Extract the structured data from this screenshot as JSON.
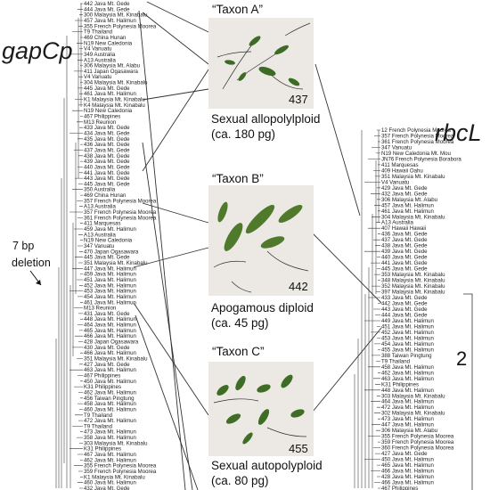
{
  "titles": {
    "left": "gapCp",
    "right": "rbcL"
  },
  "taxa": [
    {
      "name": "“Taxon A”",
      "voucher": "437",
      "caption_line1": "Sexual allopolylploid",
      "caption_line2": "(ca. 180 pg)"
    },
    {
      "name": "“Taxon B”",
      "voucher": "442",
      "caption_line1": "Apogamous diploid",
      "caption_line2": "(ca. 45 pg)"
    },
    {
      "name": "“Taxon C”",
      "voucher": "455",
      "caption_line1": "Sexual autopolyploid",
      "caption_line2": "(ca. 80 pg)"
    }
  ],
  "deletion_note": {
    "line1": "7 bp",
    "line2": "deletion"
  },
  "right_number": "2",
  "left_leaves": [
    "442 Java Mt. Gede",
    "444 Java Mt. Gede",
    "300 Malaysia Mt. Kinabalu",
    "457 Java Mt. Halimun",
    "355 French Polynesia Moorea",
    "T9 Thailand",
    "469 China Hunan",
    "N19 New Caledonia",
    "V4 Vanuatu",
    "349 Australia",
    "A13 Australia",
    "306 Malaysia Mt. Alabu",
    "411 Japan Ogasawara",
    "V4 Vanuatu",
    "304 Malaysia Mt. Kinabalu",
    "445 Java Mt. Gede",
    "461 Java Mt. Halimun",
    "K1 Malaysia Mt. Kinabalu",
    "K4 Malaysia Mt. Kinabalu",
    "N19 New Caledonia",
    "467 Philippines",
    "M13 Reunion",
    "433 Java Mt. Gede",
    "434 Java Mt. Gede",
    "435 Java Mt. Gede",
    "436 Java Mt. Gede",
    "437 Java Mt. Gede",
    "438 Java Mt. Gede",
    "439 Java Mt. Gede",
    "440 Java Mt. Gede",
    "441 Java Mt. Gede",
    "443 Java Mt. Gede",
    "445 Java Mt. Gede",
    "350 Australia",
    "469 China Hunan",
    "357 French Polynesia Moorea",
    "A13 Australia",
    "357 French Polynesia Moorea",
    "361 French Polynesia Moorea",
    "411 Marquesas",
    "459 Java Mt. Halimun",
    "A13 Australia",
    "N19 New Caledonia",
    "347 Vanuatu",
    "470 Japan Ogasawara",
    "445 Java Mt. Gede",
    "351 Malaysia Mt. Kinabalu",
    "447 Java Mt. Halimun",
    "459 Java Mt. Halimun",
    "451 Java Mt. Halimun",
    "452 Java Mt. Halimun",
    "453 Java Mt. Halimun",
    "454 Java Mt. Halimun",
    "461 Java Mt. Halimun",
    "M13 Reunion",
    "431 Java Mt. Gede",
    "448 Java Mt. Halimun",
    "464 Java Mt. Halimun",
    "465 Java Mt. Halimun",
    "466 Java Mt. Halimun",
    "428 Japan Ogasawara",
    "430 Java Mt. Gede",
    "466 Java Mt. Halimun",
    "351 Malaysia Mt. Kinabalu",
    "427 Java Mt. Gede",
    "463 Java Mt. Halimun",
    "467 Philippines",
    "450 Java Mt. Halimun",
    "K31 Philippines",
    "462 Java Mt. Halimun",
    "456 Taiwan Pingtung",
    "458 Java Mt. Halimun",
    "460 Java Mt. Halimun",
    "T9 Thailand",
    "472 Java Mt. Halimun",
    "T9 Thailand",
    "473 Java Mt. Halimun",
    "358 Java Mt. Halimun",
    "303 Malaysia Mt. Kinabalu",
    "K31 Philippines",
    "467 Java Mt. Halimun",
    "462 Java Mt. Halimun",
    "355 French Polynesia Moorea",
    "359 French Polynesia Moorea",
    "K1 Malaysia Mt. Kinabalu",
    "460 Java Mt. Halimun",
    "432 Java Mt. Gede"
  ],
  "right_leaves": [
    "12 French Polynesia Moorea",
    "357 French Polynesia Moorea",
    "361 French Polynesia Moorea",
    "347 Vanuatu",
    "N19 New Caledonia Mt. Mou",
    "JN76 French Polynesia Borabora",
    "411 Marquesas",
    "409 Hawaii Oahu",
    "351 Malaysia Mt. Kinabalu",
    "V4 Vanuatu",
    "429 Java Mt. Gede",
    "432 Java Mt. Gede",
    "306 Malaysia Mt. Alabu",
    "457 Java Mt. Halimun",
    "461 Java Mt. Halimun",
    "304 Malaysia Mt. Kinabalu",
    "A13 Australia",
    "407 Hawaii Hawaii",
    "436 Java Mt. Gede",
    "437 Java Mt. Gede",
    "438 Java Mt. Gede",
    "439 Java Mt. Gede",
    "440 Java Mt. Gede",
    "441 Java Mt. Gede",
    "445 Java Mt. Gede",
    "353 Malaysia Mt. Kinabalu",
    "348 Malaysia Mt. Kinabalu",
    "352 Malaysia Mt. Kinabalu",
    "397 Malaysia Mt. Kinabalu",
    "433 Java Mt. Gede",
    "442 Java Mt. Gede",
    "443 Java Mt. Gede",
    "444 Java Mt. Gede",
    "449 Java Mt. Halimun",
    "451 Java Mt. Halimun",
    "452 Java Mt. Halimun",
    "453 Java Mt. Halimun",
    "454 Java Mt. Halimun",
    "455 Java Mt. Halimun",
    "388 Taiwan Pingtung",
    "T9 Thailand",
    "458 Java Mt. Halimun",
    "462 Java Mt. Halimun",
    "463 Java Mt. Halimun",
    "K31 Philippines",
    "448 Java Mt. Halimun",
    "303 Malaysia Mt. Kinabalu",
    "464 Java Mt. Halimun",
    "472 Java Mt. Halimun",
    "302 Malaysia Mt. Kinabalu",
    "473 Java Mt. Halimun",
    "447 Java Mt. Halimun",
    "306 Malaysia Mt. Alabu",
    "355 French Polynesia Moorea",
    "359 French Polynesia Moorea",
    "360 French Polynesia Moorea",
    "427 Java Mt. Gede",
    "450 Java Mt. Halimun",
    "465 Java Mt. Halimun",
    "466 Java Mt. Halimun",
    "428 Java Mt. Halimun",
    "466 Java Mt. Halimun",
    "467 Philippines"
  ]
}
